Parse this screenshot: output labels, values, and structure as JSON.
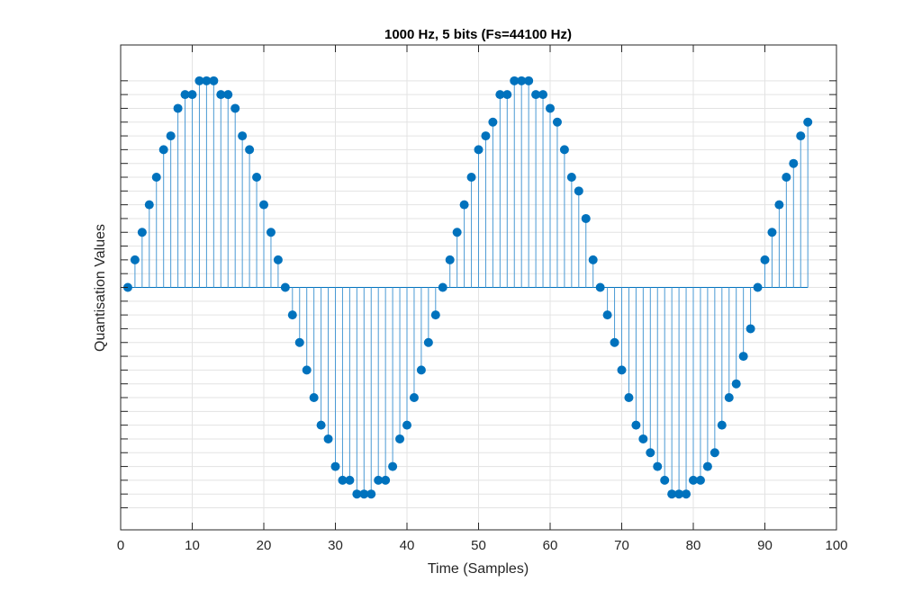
{
  "chart_data": {
    "type": "stem",
    "title": "1000 Hz, 5 bits (Fs=44100 Hz)",
    "xlabel": "Time (Samples)",
    "ylabel": "Quantisation Values",
    "xlim": [
      0,
      100
    ],
    "ylim": [
      -17.6,
      17.6
    ],
    "xticks": [
      0,
      10,
      20,
      30,
      40,
      50,
      60,
      70,
      80,
      90,
      100
    ],
    "yticks": [
      -16,
      -15,
      -14,
      -13,
      -12,
      -11,
      -10,
      -9,
      -8,
      -7,
      -6,
      -5,
      -4,
      -3,
      -2,
      -1,
      0,
      1,
      2,
      3,
      4,
      5,
      6,
      7,
      8,
      9,
      10,
      11,
      12,
      13,
      14,
      15
    ],
    "ytick_labels_shown": false,
    "grid": true,
    "color": "#0072BD",
    "x_start": 1,
    "values": [
      0,
      2,
      4,
      6,
      8,
      10,
      11,
      13,
      14,
      14,
      15,
      15,
      15,
      14,
      14,
      13,
      11,
      10,
      8,
      6,
      4,
      2,
      0,
      -2,
      -4,
      -6,
      -8,
      -10,
      -11,
      -13,
      -14,
      -14,
      -15,
      -15,
      -15,
      -14,
      -14,
      -13,
      -11,
      -10,
      -8,
      -6,
      -4,
      -2,
      0,
      2,
      4,
      6,
      8,
      10,
      11,
      12,
      14,
      14,
      15,
      15,
      15,
      14,
      14,
      13,
      12,
      10,
      8,
      7,
      5,
      2,
      0,
      -2,
      -4,
      -6,
      -8,
      -10,
      -11,
      -12,
      -13,
      -14,
      -15,
      -15,
      -15,
      -14,
      -14,
      -13,
      -12,
      -10,
      -8,
      -7,
      -5,
      -3,
      0,
      2,
      4,
      6,
      8,
      9,
      11,
      12
    ]
  }
}
